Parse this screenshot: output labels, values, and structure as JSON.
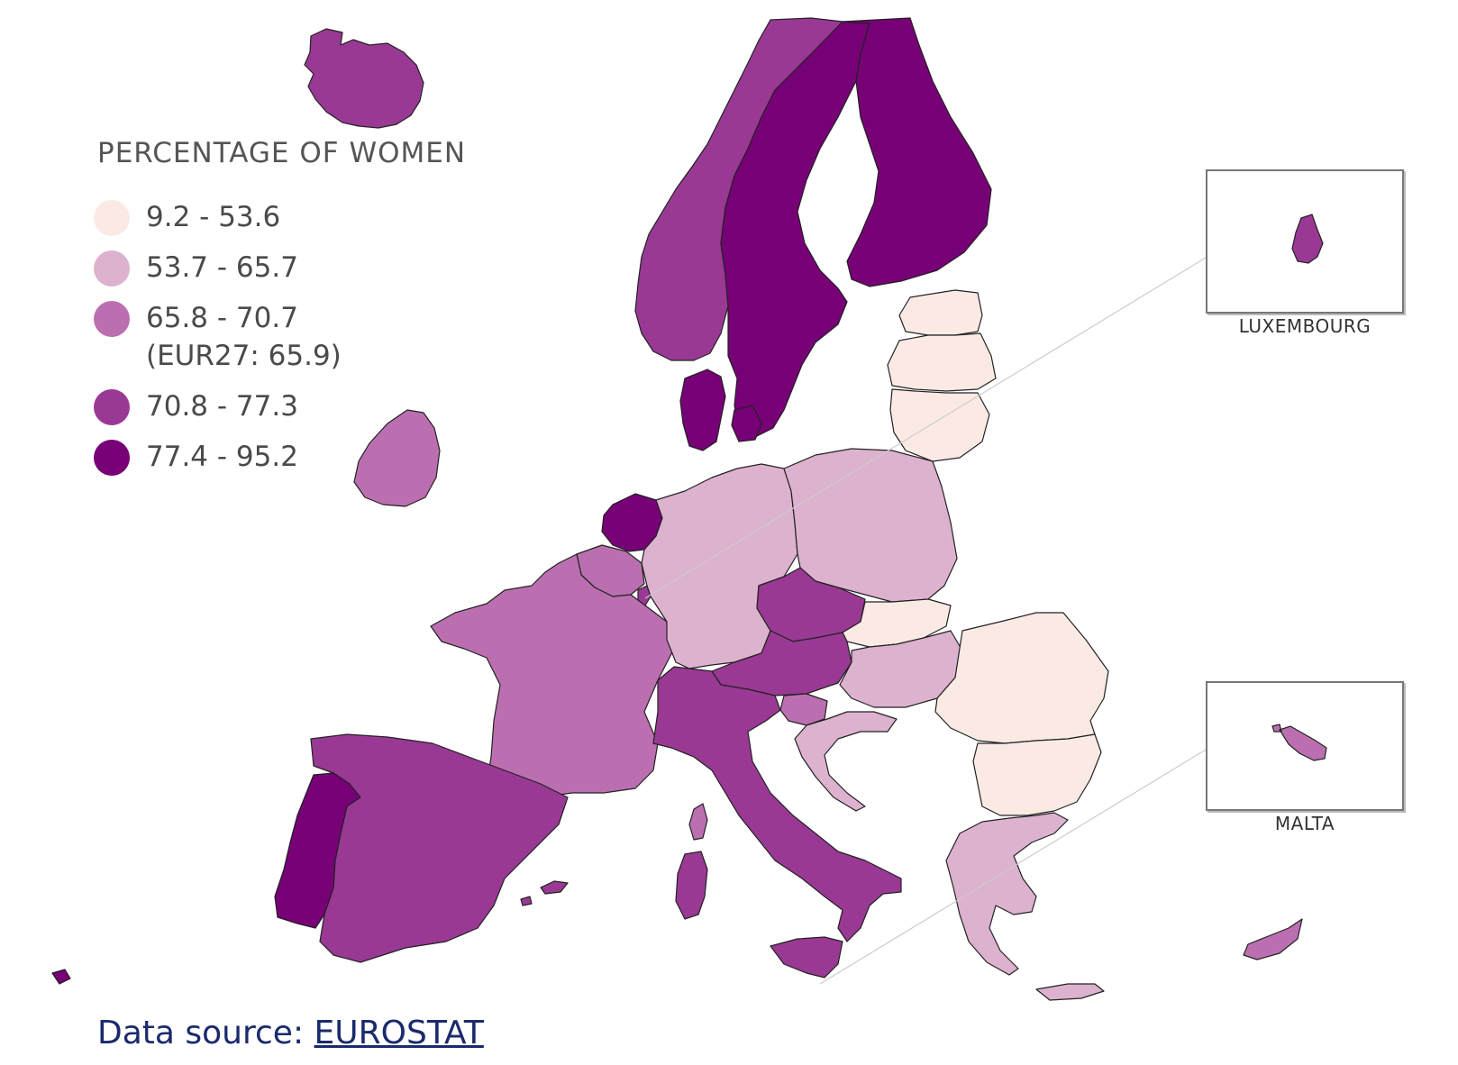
{
  "legend": {
    "title": "PERCENTAGE OF WOMEN",
    "items": [
      {
        "label": "9.2 - 53.6",
        "color": "#fbeae4"
      },
      {
        "label": "53.7 - 65.7",
        "color": "#ddb2ce"
      },
      {
        "label": "65.8 - 70.7",
        "sub": "(EUR27: 65.9)",
        "color": "#bb6fb0"
      },
      {
        "label": "70.8 - 77.3",
        "color": "#993994"
      },
      {
        "label": "77.4 - 95.2",
        "color": "#770077"
      }
    ]
  },
  "insets": [
    {
      "label": "LUXEMBOURG"
    },
    {
      "label": "MALTA"
    }
  ],
  "source": {
    "prefix": "Data source: ",
    "link": "EUROSTAT"
  },
  "colors": {
    "border": "#222222",
    "background": "#ffffff"
  }
}
